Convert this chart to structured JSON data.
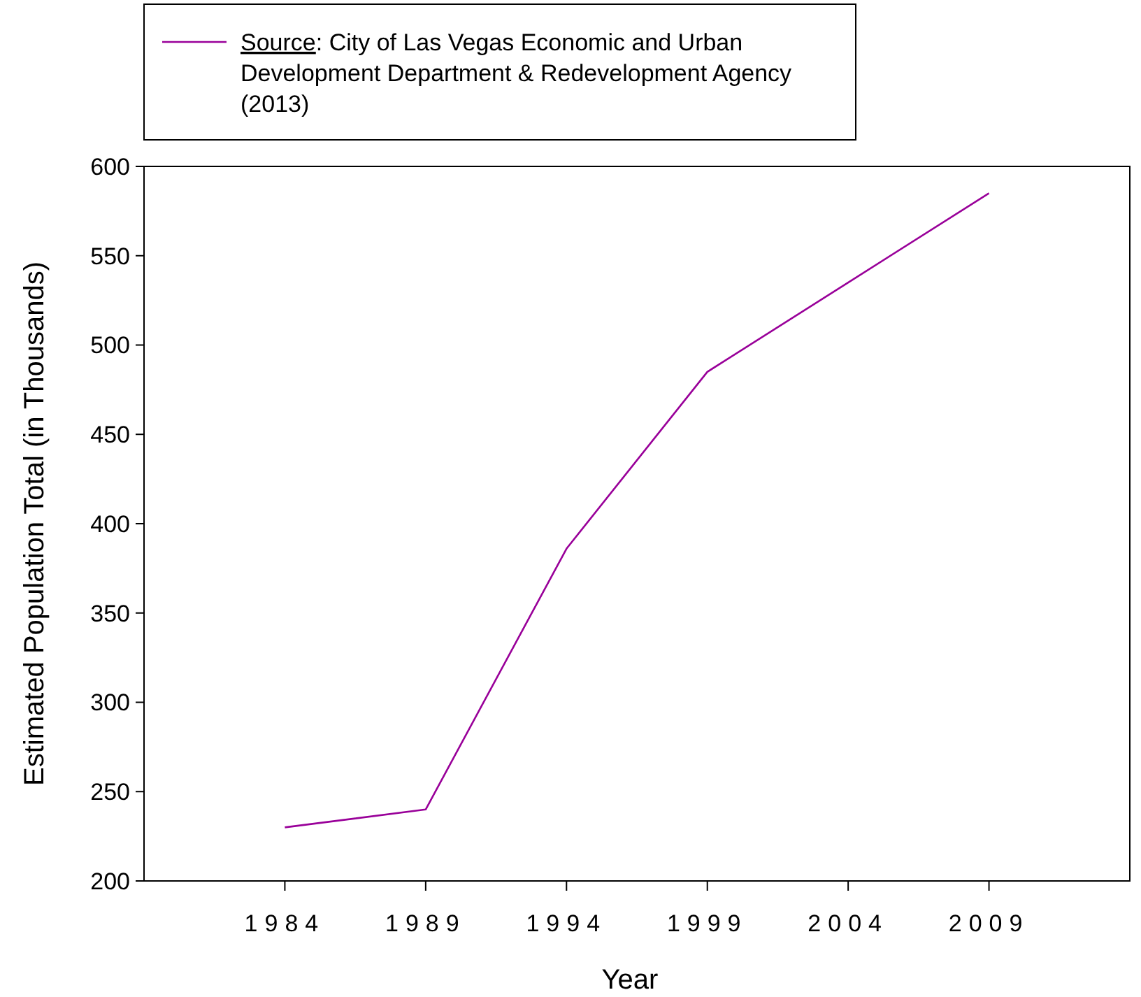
{
  "chart_data": {
    "type": "line",
    "xlabel": "Year",
    "ylabel": "Estimated Population Total (in Thousands)",
    "xlim": [
      1979,
      2014
    ],
    "xticks": [
      1984,
      1989,
      1994,
      1999,
      2004,
      2009
    ],
    "ylim": [
      200,
      600
    ],
    "yticks": [
      200,
      250,
      300,
      350,
      400,
      450,
      500,
      550,
      600
    ],
    "x": [
      1984,
      1989,
      1994,
      1999,
      2004,
      2009
    ],
    "series": [
      {
        "name": "Source: City of Las Vegas Economic and Urban Development Department & Redevelopment Agency (2013)",
        "color": "#990099",
        "values": [
          230,
          240,
          386,
          485,
          535,
          585
        ]
      }
    ],
    "legend": "top left",
    "grid": false
  }
}
